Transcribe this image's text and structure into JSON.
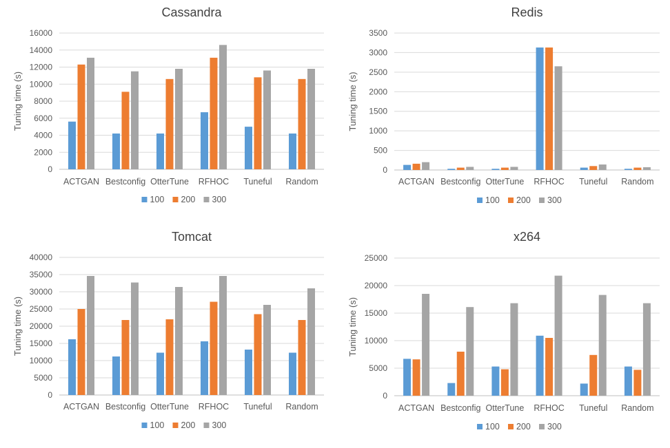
{
  "chart_data": [
    {
      "type": "bar",
      "title": "Cassandra",
      "xlabel": "",
      "ylabel": "Tuning time (s)",
      "ylim": [
        0,
        16000
      ],
      "yticks": [
        "0",
        "2000",
        "4000",
        "6000",
        "8000",
        "10000",
        "12000",
        "14000",
        "16000"
      ],
      "grid": true,
      "legend_position": "bottom",
      "categories": [
        "ACTGAN",
        "Bestconfig",
        "OtterTune",
        "RFHOC",
        "Tuneful",
        "Random"
      ],
      "series": [
        {
          "name": "100",
          "color": "#5B9BD5",
          "values": [
            5600,
            4200,
            4200,
            6700,
            5000,
            4200
          ]
        },
        {
          "name": "200",
          "color": "#ED7D31",
          "values": [
            12300,
            9100,
            10600,
            13100,
            10800,
            10600
          ]
        },
        {
          "name": "300",
          "color": "#A5A5A5",
          "values": [
            13100,
            11500,
            11800,
            14600,
            11600,
            11800
          ]
        }
      ]
    },
    {
      "type": "bar",
      "title": "Redis",
      "xlabel": "",
      "ylabel": "Tuning time (s)",
      "ylim": [
        0,
        3500
      ],
      "yticks": [
        "0",
        "500",
        "1000",
        "1500",
        "2000",
        "2500",
        "3000",
        "3500"
      ],
      "grid": true,
      "legend_position": "bottom",
      "categories": [
        "ACTGAN",
        "Bestconfig",
        "OtterTune",
        "RFHOC",
        "Tuneful",
        "Random"
      ],
      "series": [
        {
          "name": "100",
          "color": "#5B9BD5",
          "values": [
            130,
            30,
            30,
            3130,
            60,
            30
          ]
        },
        {
          "name": "200",
          "color": "#ED7D31",
          "values": [
            160,
            60,
            60,
            3130,
            100,
            60
          ]
        },
        {
          "name": "300",
          "color": "#A5A5A5",
          "values": [
            200,
            80,
            80,
            2650,
            140,
            70
          ]
        }
      ]
    },
    {
      "type": "bar",
      "title": "Tomcat",
      "xlabel": "",
      "ylabel": "Tuning time (s)",
      "ylim": [
        0,
        40000
      ],
      "yticks": [
        "0",
        "5000",
        "10000",
        "15000",
        "20000",
        "25000",
        "30000",
        "35000",
        "40000"
      ],
      "grid": true,
      "legend_position": "bottom",
      "categories": [
        "ACTGAN",
        "Bestconfig",
        "OtterTune",
        "RFHOC",
        "Tuneful",
        "Random"
      ],
      "series": [
        {
          "name": "100",
          "color": "#5B9BD5",
          "values": [
            16200,
            11200,
            12300,
            15600,
            13200,
            12300
          ]
        },
        {
          "name": "200",
          "color": "#ED7D31",
          "values": [
            25000,
            21800,
            22000,
            27100,
            23500,
            21800
          ]
        },
        {
          "name": "300",
          "color": "#A5A5A5",
          "values": [
            34600,
            32700,
            31400,
            34600,
            26200,
            31000
          ]
        }
      ]
    },
    {
      "type": "bar",
      "title": "x264",
      "xlabel": "",
      "ylabel": "Tuning time (s)",
      "ylim": [
        0,
        25000
      ],
      "yticks": [
        "0",
        "5000",
        "10000",
        "15000",
        "20000",
        "25000"
      ],
      "grid": true,
      "legend_position": "bottom",
      "categories": [
        "ACTGAN",
        "Bestconfig",
        "OtterTune",
        "RFHOC",
        "Tuneful",
        "Random"
      ],
      "series": [
        {
          "name": "100",
          "color": "#5B9BD5",
          "values": [
            6700,
            2300,
            5300,
            10900,
            2200,
            5300
          ]
        },
        {
          "name": "200",
          "color": "#ED7D31",
          "values": [
            6600,
            8000,
            4800,
            10500,
            7400,
            4700
          ]
        },
        {
          "name": "300",
          "color": "#A5A5A5",
          "values": [
            18500,
            16100,
            16800,
            21800,
            18300,
            16800
          ]
        }
      ]
    }
  ]
}
